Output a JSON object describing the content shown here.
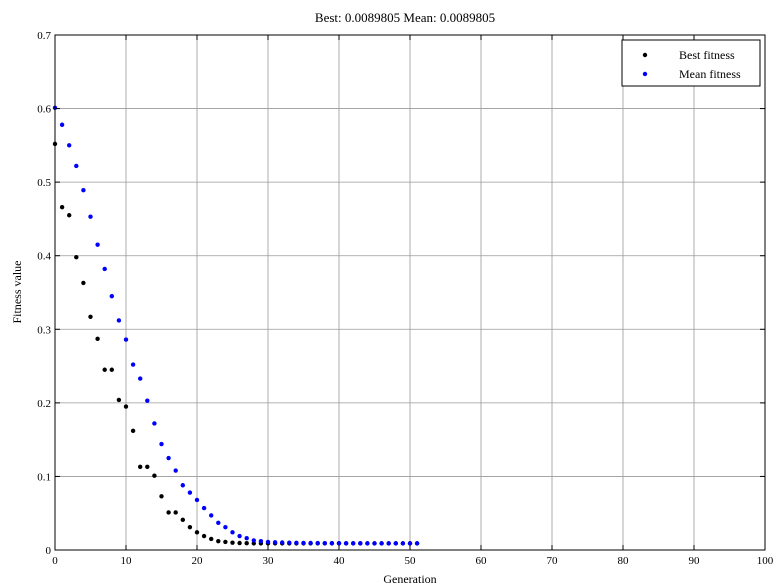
{
  "chart_data": {
    "type": "scatter",
    "title": "Best: 0.0089805 Mean: 0.0089805",
    "xlabel": "Generation",
    "ylabel": "Fitness value",
    "xlim": [
      0,
      100
    ],
    "ylim": [
      0,
      0.7
    ],
    "xticks": [
      0,
      10,
      20,
      30,
      40,
      50,
      60,
      70,
      80,
      90,
      100
    ],
    "yticks": [
      0,
      0.1,
      0.2,
      0.3,
      0.4,
      0.5,
      0.6,
      0.7
    ],
    "xtick_labels": [
      "0",
      "10",
      "20",
      "30",
      "40",
      "50",
      "60",
      "70",
      "80",
      "90",
      "100"
    ],
    "ytick_labels": [
      "0",
      "0.1",
      "0.2",
      "0.3",
      "0.4",
      "0.5",
      "0.6",
      "0.7"
    ],
    "grid": true,
    "legend_position": "top-right",
    "series": [
      {
        "name": "Best fitness",
        "color": "#000000",
        "x": [
          0,
          1,
          2,
          3,
          4,
          5,
          6,
          7,
          8,
          9,
          10,
          11,
          12,
          13,
          14,
          15,
          16,
          17,
          18,
          19,
          20,
          21,
          22,
          23,
          24,
          25,
          26,
          27,
          28,
          29,
          30,
          31,
          32,
          33,
          34,
          35,
          36,
          37,
          38,
          39,
          40,
          41,
          42,
          43,
          44,
          45,
          46,
          47,
          48,
          49,
          50,
          51
        ],
        "y": [
          0.552,
          0.466,
          0.455,
          0.398,
          0.363,
          0.317,
          0.287,
          0.245,
          0.245,
          0.204,
          0.195,
          0.162,
          0.113,
          0.113,
          0.101,
          0.073,
          0.051,
          0.051,
          0.041,
          0.031,
          0.024,
          0.019,
          0.015,
          0.012,
          0.011,
          0.01,
          0.0095,
          0.0092,
          0.009,
          0.009,
          0.009,
          0.009,
          0.009,
          0.009,
          0.009,
          0.009,
          0.009,
          0.009,
          0.009,
          0.009,
          0.009,
          0.009,
          0.009,
          0.009,
          0.009,
          0.009,
          0.009,
          0.009,
          0.009,
          0.009,
          0.009,
          0.009
        ]
      },
      {
        "name": "Mean fitness",
        "color": "#0000ff",
        "x": [
          0,
          1,
          2,
          3,
          4,
          5,
          6,
          7,
          8,
          9,
          10,
          11,
          12,
          13,
          14,
          15,
          16,
          17,
          18,
          19,
          20,
          21,
          22,
          23,
          24,
          25,
          26,
          27,
          28,
          29,
          30,
          31,
          32,
          33,
          34,
          35,
          36,
          37,
          38,
          39,
          40,
          41,
          42,
          43,
          44,
          45,
          46,
          47,
          48,
          49,
          50,
          51
        ],
        "y": [
          0.601,
          0.578,
          0.55,
          0.522,
          0.489,
          0.453,
          0.415,
          0.382,
          0.345,
          0.312,
          0.286,
          0.252,
          0.233,
          0.203,
          0.172,
          0.144,
          0.125,
          0.108,
          0.088,
          0.078,
          0.068,
          0.057,
          0.047,
          0.037,
          0.031,
          0.024,
          0.019,
          0.016,
          0.013,
          0.012,
          0.011,
          0.0105,
          0.0102,
          0.01,
          0.0098,
          0.0096,
          0.0095,
          0.0094,
          0.0093,
          0.0092,
          0.0092,
          0.0091,
          0.0091,
          0.0091,
          0.009,
          0.009,
          0.009,
          0.009,
          0.009,
          0.009,
          0.009,
          0.009
        ]
      }
    ]
  }
}
